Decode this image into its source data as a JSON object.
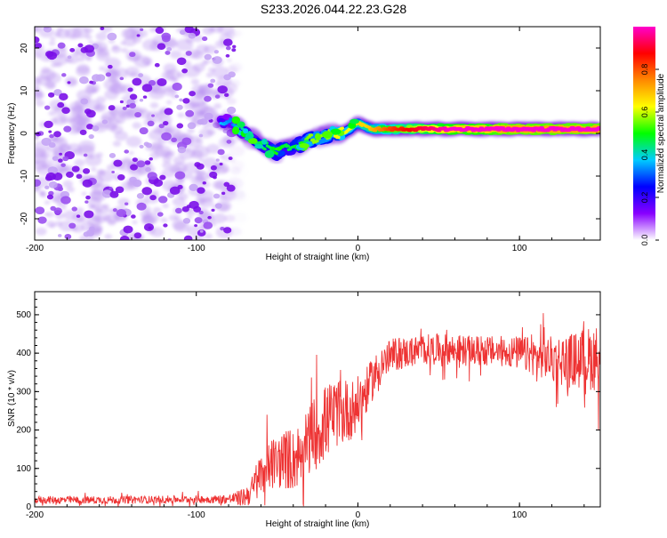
{
  "figure_title": "S233.2026.044.22.23.G28",
  "chart_data": [
    {
      "type": "heatmap",
      "title": "S233.2026.044.22.23.G28",
      "xlabel": "Height of straight line (km)",
      "ylabel": "Frequency (Hz)",
      "xlim": [
        -200,
        150
      ],
      "ylim": [
        -25,
        25
      ],
      "xticks": [
        -200,
        -100,
        0,
        100
      ],
      "yticks": [
        -20,
        -10,
        0,
        10,
        20
      ],
      "xtick_labels": [
        "-200",
        "-100",
        "0",
        "100"
      ],
      "ytick_labels": [
        "-20",
        "-10",
        "0",
        "10",
        "20"
      ],
      "noise_region_x": [
        -200,
        -72
      ],
      "signal_track": [
        {
          "x": -85,
          "f": 3.0,
          "amp": 0.25
        },
        {
          "x": -78,
          "f": 2.5,
          "amp": 0.2
        },
        {
          "x": -72,
          "f": 0.5,
          "amp": 0.3
        },
        {
          "x": -66,
          "f": -1.0,
          "amp": 0.3
        },
        {
          "x": -60,
          "f": -2.5,
          "amp": 0.35
        },
        {
          "x": -55,
          "f": -3.5,
          "amp": 0.35
        },
        {
          "x": -50,
          "f": -4.5,
          "amp": 0.4
        },
        {
          "x": -45,
          "f": -3.5,
          "amp": 0.35
        },
        {
          "x": -40,
          "f": -3.0,
          "amp": 0.35
        },
        {
          "x": -35,
          "f": -2.5,
          "amp": 0.4
        },
        {
          "x": -30,
          "f": -1.5,
          "amp": 0.45
        },
        {
          "x": -25,
          "f": -1.0,
          "amp": 0.45
        },
        {
          "x": -20,
          "f": -0.5,
          "amp": 0.45
        },
        {
          "x": -15,
          "f": 0.0,
          "amp": 0.5
        },
        {
          "x": -10,
          "f": 0.0,
          "amp": 0.5
        },
        {
          "x": -5,
          "f": 1.0,
          "amp": 0.5
        },
        {
          "x": 0,
          "f": 2.5,
          "amp": 0.55
        },
        {
          "x": 5,
          "f": 1.5,
          "amp": 0.55
        },
        {
          "x": 10,
          "f": 1.0,
          "amp": 0.6
        },
        {
          "x": 20,
          "f": 1.0,
          "amp": 0.7
        },
        {
          "x": 30,
          "f": 1.0,
          "amp": 0.75
        },
        {
          "x": 40,
          "f": 1.0,
          "amp": 0.8
        },
        {
          "x": 50,
          "f": 1.0,
          "amp": 0.85
        },
        {
          "x": 60,
          "f": 1.0,
          "amp": 0.9
        },
        {
          "x": 70,
          "f": 1.0,
          "amp": 0.9
        },
        {
          "x": 80,
          "f": 1.0,
          "amp": 0.9
        },
        {
          "x": 90,
          "f": 1.0,
          "amp": 0.95
        },
        {
          "x": 100,
          "f": 1.0,
          "amp": 0.95
        },
        {
          "x": 110,
          "f": 1.0,
          "amp": 0.95
        },
        {
          "x": 120,
          "f": 1.0,
          "amp": 0.95
        },
        {
          "x": 130,
          "f": 1.0,
          "amp": 0.95
        },
        {
          "x": 140,
          "f": 1.0,
          "amp": 0.95
        },
        {
          "x": 150,
          "f": 1.0,
          "amp": 0.95
        }
      ],
      "colorbar": {
        "label": "Normalized spectral amplitude",
        "range": [
          0,
          1
        ],
        "tick_values": [
          0,
          0.2,
          0.4,
          0.6,
          0.8
        ],
        "tick_labels": [
          "0.0",
          "0.2",
          "0.4",
          "0.6",
          "0.8"
        ],
        "colors": [
          "#ffffff",
          "#8800ff",
          "#0000ff",
          "#00ccff",
          "#00ff00",
          "#ffff00",
          "#ff8800",
          "#ff0000",
          "#ff00cc"
        ]
      }
    },
    {
      "type": "line",
      "xlabel": "Height of straight line (km)",
      "ylabel": "SNR (10 * v/v)",
      "xlim": [
        -200,
        150
      ],
      "ylim": [
        0,
        560
      ],
      "xticks": [
        -200,
        -100,
        0,
        100
      ],
      "yticks": [
        0,
        100,
        200,
        300,
        400,
        500
      ],
      "xtick_labels": [
        "-200",
        "-100",
        "0",
        "100"
      ],
      "ytick_labels": [
        "0",
        "100",
        "200",
        "300",
        "400",
        "500"
      ],
      "series": [
        {
          "name": "SNR",
          "color": "#ee3333",
          "x": [
            -200,
            -150,
            -100,
            -80,
            -70,
            -65,
            -60,
            -55,
            -50,
            -45,
            -40,
            -35,
            -30,
            -25,
            -20,
            -15,
            -10,
            -5,
            0,
            5,
            10,
            15,
            20,
            25,
            30,
            40,
            50,
            60,
            70,
            80,
            90,
            100,
            110,
            120,
            130,
            140,
            150
          ],
          "values": [
            18,
            18,
            20,
            20,
            25,
            45,
            85,
            110,
            115,
            125,
            120,
            145,
            175,
            200,
            220,
            240,
            240,
            250,
            270,
            300,
            340,
            370,
            390,
            400,
            400,
            410,
            410,
            410,
            405,
            405,
            405,
            400,
            390,
            385,
            380,
            385,
            390
          ],
          "noise_amplitude": [
            10,
            10,
            10,
            12,
            25,
            40,
            60,
            70,
            70,
            80,
            80,
            90,
            90,
            100,
            100,
            90,
            80,
            80,
            70,
            60,
            55,
            50,
            45,
            45,
            40,
            40,
            40,
            40,
            40,
            40,
            40,
            45,
            50,
            60,
            70,
            80,
            90
          ]
        }
      ]
    }
  ]
}
